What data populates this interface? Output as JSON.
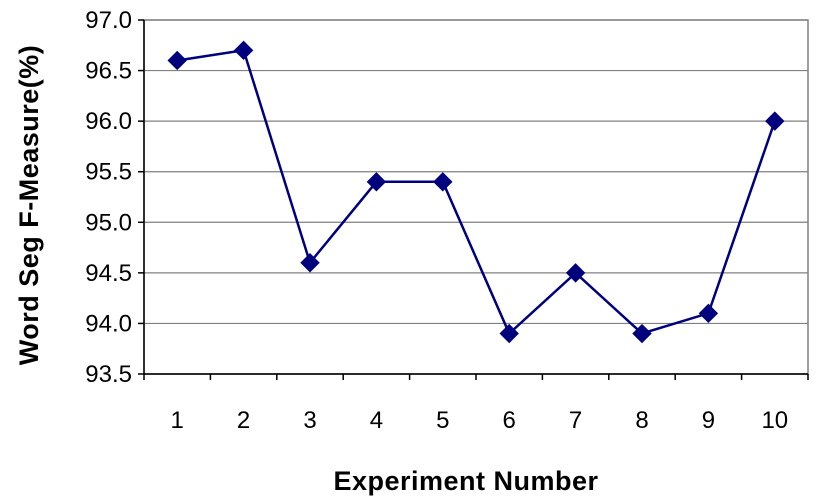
{
  "chart_data": {
    "type": "line",
    "title": "",
    "xlabel": "Experiment Number",
    "ylabel": "Word Seg F-Measure(%)",
    "x": [
      "1",
      "2",
      "3",
      "4",
      "5",
      "6",
      "7",
      "8",
      "9",
      "10"
    ],
    "series": [
      {
        "values": [
          96.6,
          96.7,
          94.6,
          95.4,
          95.4,
          93.9,
          94.5,
          93.9,
          94.1,
          96.0
        ],
        "color": "#00007f",
        "marker": "diamond"
      }
    ],
    "ylim": [
      93.5,
      97.0
    ],
    "yticks": [
      "93.5",
      "94.0",
      "94.5",
      "95.0",
      "95.5",
      "96.0",
      "96.5",
      "97.0"
    ],
    "grid": "horizontal",
    "legend": "none"
  }
}
